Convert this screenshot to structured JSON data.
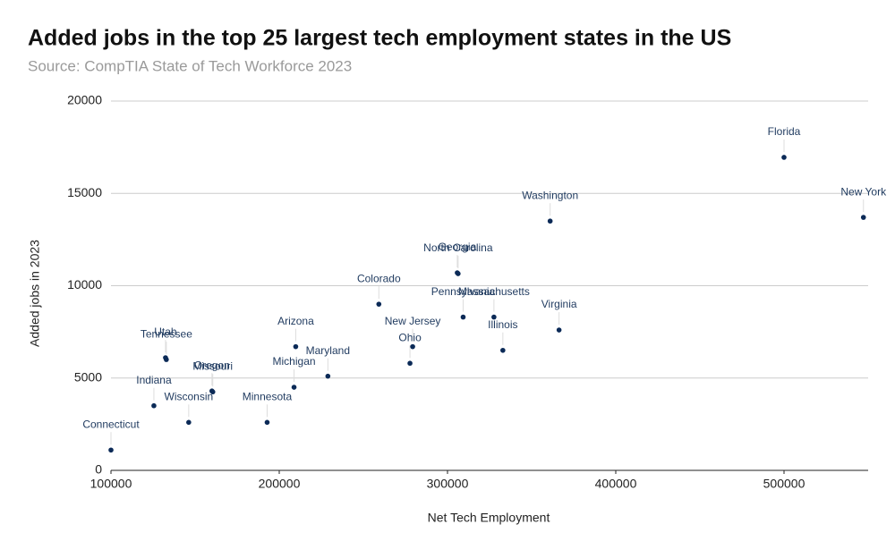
{
  "chart_data": {
    "type": "scatter",
    "title": "Added jobs in the top 25 largest tech employment states in the US",
    "subtitle": "Source: CompTIA State of Tech Workforce 2023",
    "x_label": "Net Tech Employment",
    "y_label": "Added jobs in 2023",
    "color": "#0b2a57",
    "grid": true,
    "xlim": [
      100000,
      550000
    ],
    "xticks": [
      100000,
      200000,
      300000,
      400000,
      500000
    ],
    "ylim": [
      0,
      20000
    ],
    "yticks": [
      0,
      5000,
      10000,
      15000,
      20000
    ],
    "labels": [
      "Connecticut",
      "Indiana",
      "Utah",
      "Tennessee",
      "Wisconsin",
      "Oregon",
      "Missouri",
      "Minnesota",
      "Michigan",
      "Arizona",
      "Maryland",
      "Colorado",
      "Ohio",
      "New Jersey",
      "Georgia",
      "North Carolina",
      "Pennsylvania",
      "Massachusetts",
      "Illinois",
      "Virginia",
      "Washington",
      "Florida",
      "New York"
    ],
    "x": [
      100000,
      125500,
      132400,
      132900,
      146200,
      160000,
      160500,
      192800,
      208800,
      209800,
      228900,
      259200,
      277700,
      279300,
      305800,
      306300,
      309300,
      327600,
      332900,
      366300,
      361000,
      500000,
      547200
    ],
    "values": [
      1100,
      3500,
      6100,
      6000,
      2600,
      4300,
      4250,
      2600,
      4500,
      6700,
      5100,
      9000,
      5800,
      6700,
      10700,
      10650,
      8300,
      8300,
      6500,
      7600,
      13500,
      16950,
      13700
    ]
  }
}
